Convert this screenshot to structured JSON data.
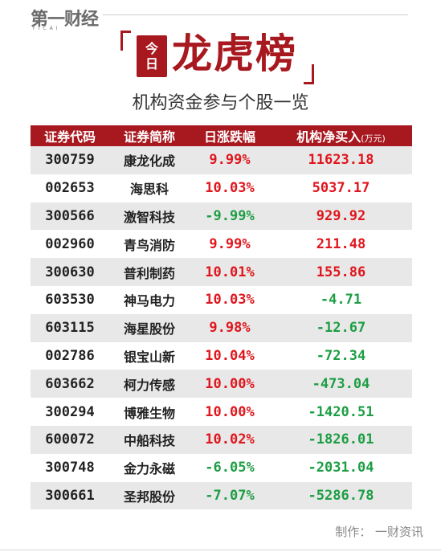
{
  "brand": {
    "logo": "第一财经",
    "logo_sub": "YICAI"
  },
  "header": {
    "badge_top": "今",
    "badge_bottom": "日",
    "title": "龙虎榜",
    "subtitle": "机构资金参与个股一览"
  },
  "table": {
    "columns": [
      "证券代码",
      "证券简称",
      "日涨跌幅",
      "机构净买入"
    ],
    "unit": "(万元)",
    "rows": [
      {
        "code": "300759",
        "name": "康龙化成",
        "change": "9.99%",
        "net": "11623.18"
      },
      {
        "code": "002653",
        "name": "海思科",
        "change": "10.03%",
        "net": "5037.17"
      },
      {
        "code": "300566",
        "name": "激智科技",
        "change": "-9.99%",
        "net": "929.92"
      },
      {
        "code": "002960",
        "name": "青鸟消防",
        "change": "9.99%",
        "net": "211.48"
      },
      {
        "code": "300630",
        "name": "普利制药",
        "change": "10.01%",
        "net": "155.86"
      },
      {
        "code": "603530",
        "name": "神马电力",
        "change": "10.03%",
        "net": "-4.71"
      },
      {
        "code": "603115",
        "name": "海星股份",
        "change": "9.98%",
        "net": "-12.67"
      },
      {
        "code": "002786",
        "name": "银宝山新",
        "change": "10.04%",
        "net": "-72.34"
      },
      {
        "code": "603662",
        "name": "柯力传感",
        "change": "10.00%",
        "net": "-473.04"
      },
      {
        "code": "300294",
        "name": "博雅生物",
        "change": "10.00%",
        "net": "-1420.51"
      },
      {
        "code": "600072",
        "name": "中船科技",
        "change": "10.02%",
        "net": "-1826.01"
      },
      {
        "code": "300748",
        "name": "金力永磁",
        "change": "-6.05%",
        "net": "-2031.04"
      },
      {
        "code": "300661",
        "name": "圣邦股份",
        "change": "-7.07%",
        "net": "-5286.78"
      }
    ]
  },
  "footer": {
    "credit": "制作：  一财资讯"
  },
  "colors": {
    "accent": "#a8181f",
    "up": "#e0161d",
    "down": "#1d9e44"
  }
}
